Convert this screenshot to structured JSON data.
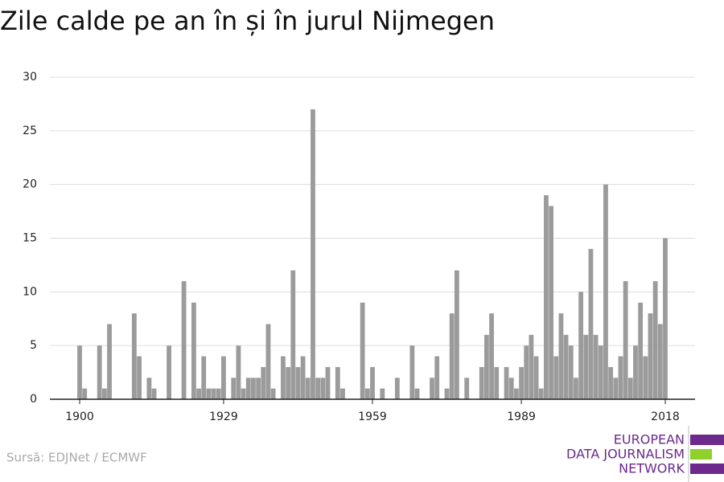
{
  "chart_data": {
    "type": "bar",
    "title": "Zile calde pe an în și în jurul Nijmegen",
    "source": "Sursă: EDJNet / ECMWF",
    "logo": [
      "EUROPEAN",
      "DATA JOURNALISM",
      "NETWORK"
    ],
    "color": "#9b9b9b",
    "x": [
      1900,
      1901,
      1902,
      1903,
      1904,
      1905,
      1906,
      1907,
      1908,
      1909,
      1910,
      1911,
      1912,
      1913,
      1914,
      1915,
      1916,
      1917,
      1918,
      1919,
      1920,
      1921,
      1922,
      1923,
      1924,
      1925,
      1926,
      1927,
      1928,
      1929,
      1930,
      1931,
      1932,
      1933,
      1934,
      1935,
      1936,
      1937,
      1938,
      1939,
      1940,
      1941,
      1942,
      1943,
      1944,
      1945,
      1946,
      1947,
      1948,
      1949,
      1950,
      1951,
      1952,
      1953,
      1954,
      1955,
      1956,
      1957,
      1958,
      1959,
      1960,
      1961,
      1962,
      1963,
      1964,
      1965,
      1966,
      1967,
      1968,
      1969,
      1970,
      1971,
      1972,
      1973,
      1974,
      1975,
      1976,
      1977,
      1978,
      1979,
      1980,
      1981,
      1982,
      1983,
      1984,
      1985,
      1986,
      1987,
      1988,
      1989,
      1990,
      1991,
      1992,
      1993,
      1994,
      1995,
      1996,
      1997,
      1998,
      1999,
      2000,
      2001,
      2002,
      2003,
      2004,
      2005,
      2006,
      2007,
      2008,
      2009,
      2010,
      2011,
      2012,
      2013,
      2014,
      2015,
      2016,
      2017,
      2018
    ],
    "values": [
      5,
      1,
      0,
      0,
      5,
      1,
      7,
      0,
      0,
      0,
      0,
      8,
      4,
      0,
      2,
      1,
      0,
      0,
      5,
      0,
      0,
      11,
      0,
      9,
      1,
      4,
      1,
      1,
      1,
      4,
      0,
      2,
      5,
      1,
      2,
      2,
      2,
      3,
      7,
      1,
      0,
      4,
      3,
      12,
      3,
      4,
      2,
      27,
      2,
      2,
      3,
      0,
      3,
      1,
      0,
      0,
      0,
      9,
      1,
      3,
      0,
      1,
      0,
      0,
      2,
      0,
      0,
      5,
      1,
      0,
      0,
      2,
      4,
      0,
      1,
      8,
      12,
      0,
      2,
      0,
      0,
      3,
      6,
      8,
      3,
      0,
      3,
      2,
      1,
      3,
      5,
      6,
      4,
      1,
      19,
      18,
      4,
      8,
      6,
      5,
      2,
      10,
      6,
      14,
      6,
      5,
      20,
      3,
      2,
      4,
      11,
      2,
      5,
      9,
      4,
      8,
      11,
      7,
      15
    ],
    "xlim": [
      1894,
      2024
    ],
    "xticks": [
      1900,
      1929,
      1959,
      1989,
      2018
    ],
    "ylim": [
      0,
      30
    ],
    "yticks": [
      0,
      5,
      10,
      15,
      20,
      25,
      30
    ],
    "grid": true
  }
}
